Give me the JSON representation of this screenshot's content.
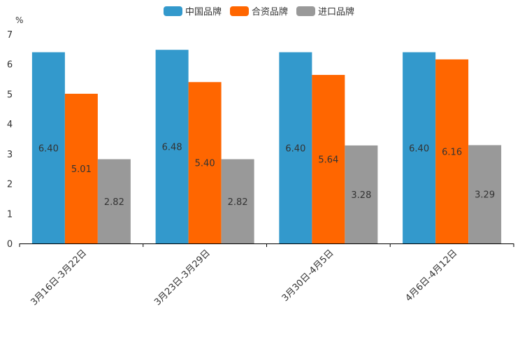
{
  "chart_data": {
    "type": "bar",
    "title": "",
    "ylabel": "%",
    "xlabel": "",
    "ylim": [
      0,
      7
    ],
    "yticks": [
      "0",
      "1",
      "2",
      "3",
      "4",
      "5",
      "6",
      "7"
    ],
    "categories": [
      "3月16日-3月22日",
      "3月23日-3月29日",
      "3月30日-4月5日",
      "4月6日-4月12日"
    ],
    "series": [
      {
        "name": "中国品牌",
        "color": "#3399CC",
        "values": [
          6.4,
          6.48,
          6.4,
          6.4
        ],
        "labels": [
          "6.40",
          "6.48",
          "6.40",
          "6.40"
        ]
      },
      {
        "name": "合资品牌",
        "color": "#FF6600",
        "values": [
          5.01,
          5.4,
          5.64,
          6.16
        ],
        "labels": [
          "5.01",
          "5.40",
          "5.64",
          "6.16"
        ]
      },
      {
        "name": "进口品牌",
        "color": "#999999",
        "values": [
          2.82,
          2.82,
          3.28,
          3.29
        ],
        "labels": [
          "2.82",
          "2.82",
          "3.28",
          "3.29"
        ]
      }
    ],
    "legend_position": "top-center"
  }
}
